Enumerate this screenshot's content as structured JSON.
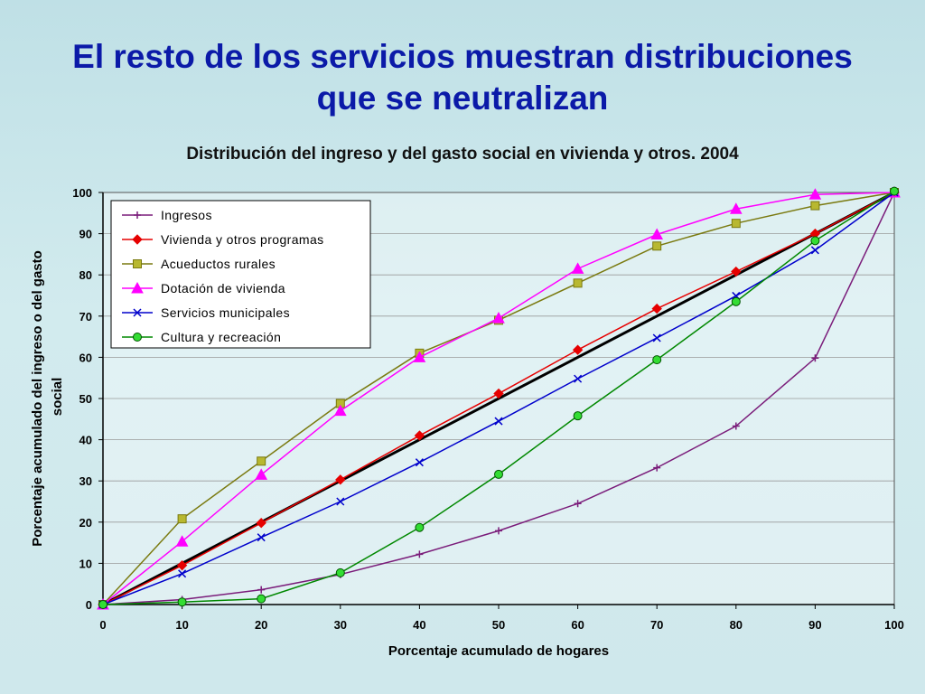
{
  "slide": {
    "title_line1": "El resto de los servicios muestran distribuciones",
    "title_line2": "que se neutralizan"
  },
  "chart_data": {
    "type": "line",
    "title": "Distribución del ingreso y del gasto social en vivienda y otros. 2004",
    "xlabel": "Porcentaje acumulado de hogares",
    "ylabel_line1": "Porcentaje acumulado del ingreso o del gasto",
    "ylabel_line2": "social",
    "xlim": [
      0,
      100
    ],
    "ylim": [
      0,
      100
    ],
    "xticks": [
      0,
      10,
      20,
      30,
      40,
      50,
      60,
      70,
      80,
      90,
      100
    ],
    "yticks": [
      0,
      10,
      20,
      30,
      40,
      50,
      60,
      70,
      80,
      90,
      100
    ],
    "x": [
      0,
      10,
      20,
      30,
      40,
      50,
      60,
      70,
      80,
      90,
      100
    ],
    "legend_position": "top-left",
    "equality_line": {
      "x": [
        0,
        100
      ],
      "y": [
        0,
        100
      ],
      "color": "#000000"
    },
    "series": [
      {
        "name": "Ingresos",
        "color": "#7a1c7a",
        "marker": "plus",
        "values": [
          0,
          1.2,
          3.6,
          7.3,
          12.2,
          17.9,
          24.5,
          33.2,
          43.3,
          59.8,
          100
        ]
      },
      {
        "name": "Vivienda y otros programas",
        "color": "#e60000",
        "marker": "diamond",
        "values": [
          0,
          9.5,
          19.8,
          30.3,
          41.0,
          51.2,
          61.8,
          71.8,
          80.8,
          90.0,
          100
        ]
      },
      {
        "name": "Acueductos rurales",
        "color": "#7a7a10",
        "marker": "square",
        "values": [
          0,
          20.8,
          34.8,
          48.8,
          61.0,
          69.0,
          78.0,
          87.0,
          92.5,
          96.8,
          100
        ]
      },
      {
        "name": "Dotación de vivienda",
        "color": "#ff00ff",
        "marker": "triangle",
        "values": [
          0,
          15.3,
          31.5,
          47.0,
          60.0,
          69.5,
          81.5,
          89.8,
          96.0,
          99.5,
          100
        ]
      },
      {
        "name": "Servicios municipales",
        "color": "#0000cc",
        "marker": "x",
        "values": [
          0,
          7.5,
          16.3,
          25.0,
          34.5,
          44.5,
          54.8,
          64.7,
          74.9,
          86.0,
          100
        ]
      },
      {
        "name": "Cultura y recreación",
        "color": "#008800",
        "marker": "circle",
        "values": [
          0,
          0.6,
          1.4,
          7.7,
          18.7,
          31.6,
          45.8,
          59.4,
          73.5,
          88.3,
          100.3
        ]
      }
    ]
  }
}
